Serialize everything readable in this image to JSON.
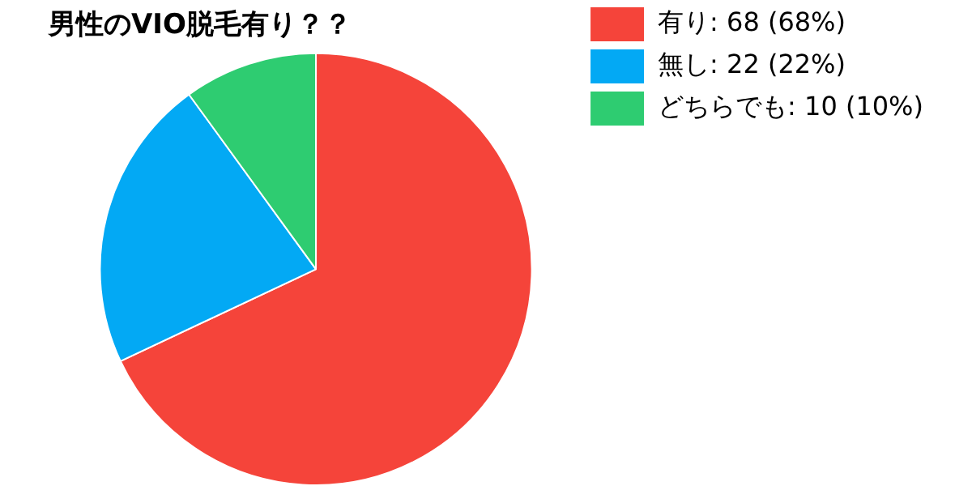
{
  "chart_data": {
    "type": "pie",
    "title": "男性のVIO脱毛有り？？",
    "categories": [
      "有り: 68 (68%)",
      "無し: 22 (22%)",
      "どちらでも: 10 (10%)"
    ],
    "values": [
      68,
      22,
      10
    ],
    "colors": [
      "#f5443a",
      "#03a9f4",
      "#2ecc71"
    ],
    "legend": "top right"
  }
}
